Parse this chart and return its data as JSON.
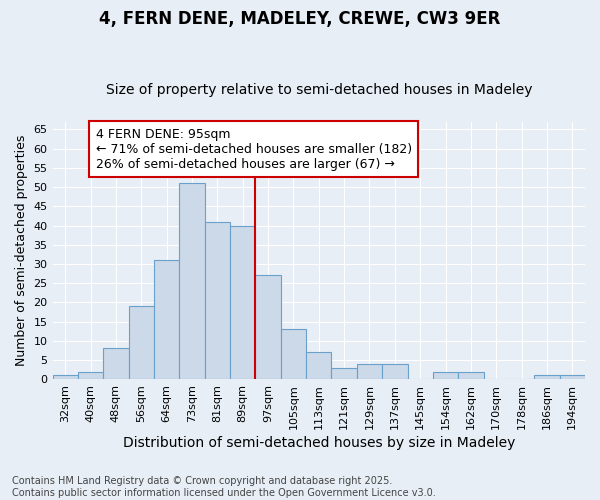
{
  "title1": "4, FERN DENE, MADELEY, CREWE, CW3 9ER",
  "title2": "Size of property relative to semi-detached houses in Madeley",
  "xlabel": "Distribution of semi-detached houses by size in Madeley",
  "ylabel": "Number of semi-detached properties",
  "categories": [
    "32sqm",
    "40sqm",
    "48sqm",
    "56sqm",
    "64sqm",
    "73sqm",
    "81sqm",
    "89sqm",
    "97sqm",
    "105sqm",
    "113sqm",
    "121sqm",
    "129sqm",
    "137sqm",
    "145sqm",
    "154sqm",
    "162sqm",
    "170sqm",
    "178sqm",
    "186sqm",
    "194sqm"
  ],
  "values": [
    1,
    2,
    8,
    19,
    31,
    51,
    41,
    40,
    27,
    13,
    7,
    3,
    4,
    4,
    0,
    2,
    2,
    0,
    0,
    1,
    1
  ],
  "bar_color": "#ccd9e8",
  "bar_edge_color": "#6aa0cc",
  "vline_x_idx": 8,
  "vline_color": "#cc0000",
  "annotation_title": "4 FERN DENE: 95sqm",
  "annotation_line1": "← 71% of semi-detached houses are smaller (182)",
  "annotation_line2": "26% of semi-detached houses are larger (67) →",
  "annotation_box_color": "#ffffff",
  "annotation_box_edge": "#cc0000",
  "ylim_max": 67,
  "yticks": [
    0,
    5,
    10,
    15,
    20,
    25,
    30,
    35,
    40,
    45,
    50,
    55,
    60,
    65
  ],
  "background_color": "#e8eef6",
  "footer1": "Contains HM Land Registry data © Crown copyright and database right 2025.",
  "footer2": "Contains public sector information licensed under the Open Government Licence v3.0.",
  "title1_fontsize": 12,
  "title2_fontsize": 10,
  "xlabel_fontsize": 10,
  "ylabel_fontsize": 9,
  "tick_fontsize": 8,
  "footer_fontsize": 7,
  "annotation_fontsize": 9
}
